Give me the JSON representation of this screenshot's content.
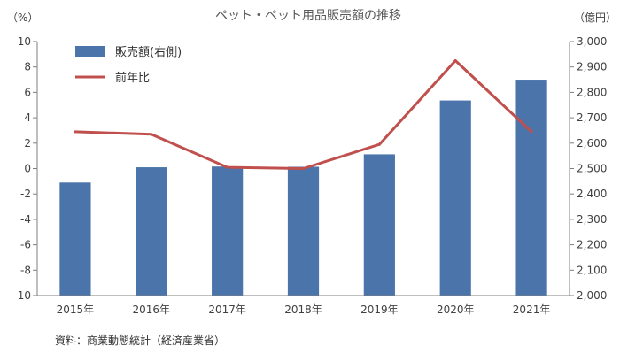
{
  "chart_data": {
    "type": "bar",
    "title": "ペット・ペット用品販売額の推移",
    "left_axis_unit": "（%）",
    "right_axis_unit": "（億円）",
    "categories": [
      "2015年",
      "2016年",
      "2017年",
      "2018年",
      "2019年",
      "2020年",
      "2021年"
    ],
    "series": [
      {
        "name": "販売額(右側)",
        "kind": "bar",
        "axis": "right",
        "color": "#4a74aa",
        "values": [
          2445,
          2505,
          2508,
          2507,
          2556,
          2768,
          2850
        ]
      },
      {
        "name": "前年比",
        "kind": "line",
        "axis": "left",
        "color": "#c0504d",
        "values": [
          2.9,
          2.7,
          0.1,
          0.0,
          1.9,
          8.5,
          2.9
        ]
      }
    ],
    "left_axis": {
      "min": -10,
      "max": 10,
      "step": 2,
      "tick_labels": [
        "-10",
        "-8",
        "-6",
        "-4",
        "-2",
        "0",
        "2",
        "4",
        "6",
        "8",
        "10"
      ]
    },
    "right_axis": {
      "min": 2000,
      "max": 3000,
      "step": 100,
      "tick_labels": [
        "2,000",
        "2,100",
        "2,200",
        "2,300",
        "2,400",
        "2,500",
        "2,600",
        "2,700",
        "2,800",
        "2,900",
        "3,000"
      ]
    },
    "legend_position": "top-left",
    "grid": false
  },
  "source": "資料：商業動態統計（経済産業省）"
}
